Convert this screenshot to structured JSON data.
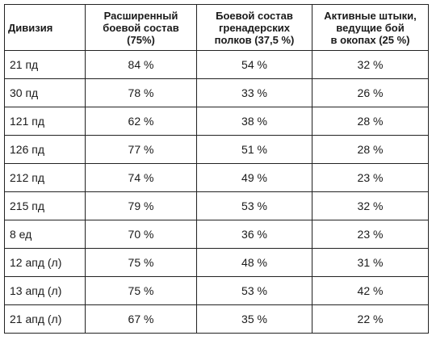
{
  "table": {
    "headers": [
      {
        "lines": [
          "Дивизия"
        ]
      },
      {
        "lines": [
          "Расширенный",
          "боевой состав",
          "(75%)"
        ]
      },
      {
        "lines": [
          "Боевой состав",
          "гренадерских",
          "полков (37,5 %)"
        ]
      },
      {
        "lines": [
          "Активные штыки,",
          "ведущие бой",
          "в окопах (25 %)"
        ]
      }
    ],
    "rows": [
      [
        "21 пд",
        "84 %",
        "54 %",
        "32 %"
      ],
      [
        "30 пд",
        "78 %",
        "33 %",
        "26 %"
      ],
      [
        "121 пд",
        "62 %",
        "38 %",
        "28 %"
      ],
      [
        "126 пд",
        "77 %",
        "51 %",
        "28 %"
      ],
      [
        "212 пд",
        "74 %",
        "49 %",
        "23 %"
      ],
      [
        "215 пд",
        "79 %",
        "53 %",
        "32 %"
      ],
      [
        "8 ед",
        "70 %",
        "36 %",
        "23 %"
      ],
      [
        "12 апд (л)",
        "75 %",
        "48 %",
        "31 %"
      ],
      [
        "13 апд (л)",
        "75 %",
        "53 %",
        "42 %"
      ],
      [
        "21 апд (л)",
        "67 %",
        "35 %",
        "22 %"
      ]
    ]
  }
}
